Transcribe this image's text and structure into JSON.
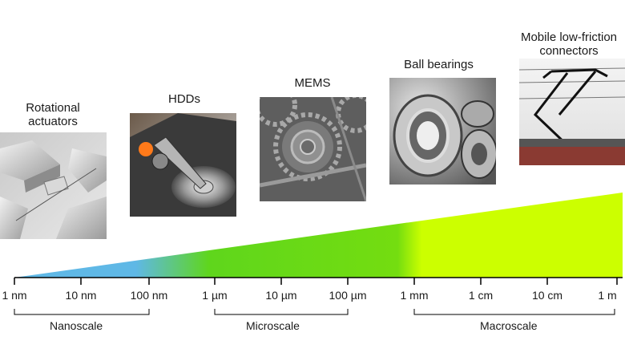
{
  "applications": [
    {
      "label": "Rotational\nactuators"
    },
    {
      "label": "HDDs"
    },
    {
      "label": "MEMS"
    },
    {
      "label": "Ball bearings"
    },
    {
      "label": "Mobile low-friction\nconnectors"
    }
  ],
  "axis": {
    "ticks": [
      "1 nm",
      "10 nm",
      "100 nm",
      "1 µm",
      "10 µm",
      "100 µm",
      "1 mm",
      "1 cm",
      "10 cm",
      "1 m"
    ]
  },
  "scales": [
    {
      "label": "Nanoscale"
    },
    {
      "label": "Microscale"
    },
    {
      "label": "Macroscale"
    }
  ],
  "colors": {
    "nano": "#5fb8e6",
    "micro": "#5fd61c",
    "macro": "#ccff00"
  }
}
